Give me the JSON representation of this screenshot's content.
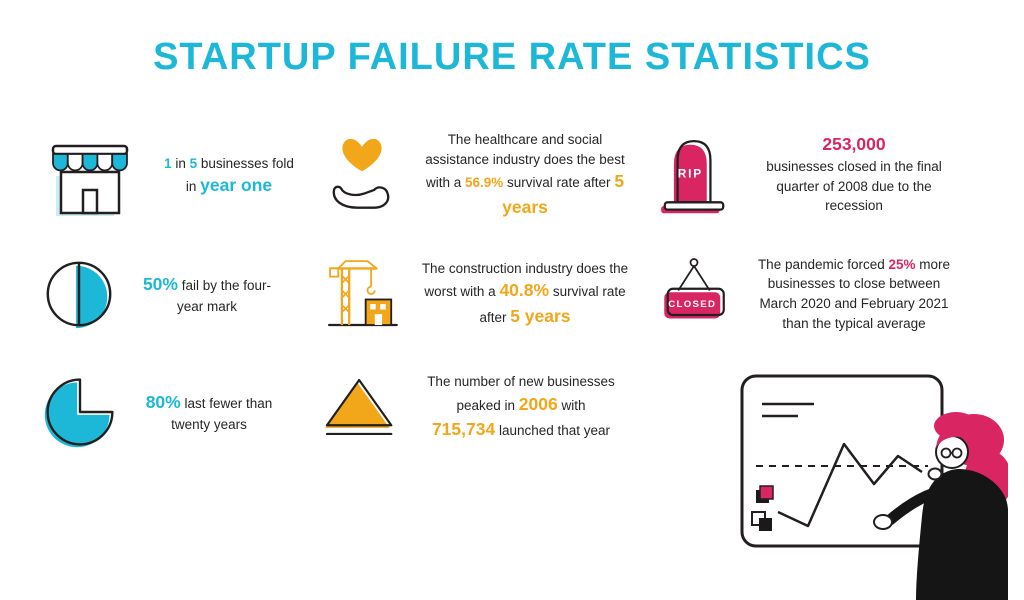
{
  "title": "STARTUP FAILURE RATE STATISTICS",
  "palette": {
    "cyan": "#1db8d8",
    "orange": "#f2a71b",
    "pink": "#d92662",
    "ink": "#231f20"
  },
  "stats": [
    {
      "id": "fold-year-one",
      "icon": "storefront-icon",
      "accent": "cyan",
      "segments": [
        {
          "t": "1",
          "c": "hl"
        },
        {
          "t": " in "
        },
        {
          "t": "5",
          "c": "hl"
        },
        {
          "t": " businesses fold"
        },
        {
          "br": true
        },
        {
          "t": "in "
        },
        {
          "t": "year one",
          "c": "hlbig"
        }
      ]
    },
    {
      "id": "healthcare-survival",
      "icon": "heart-in-hand-icon",
      "accent": "orange",
      "segments": [
        {
          "t": "The healthcare and social assistance industry does the best with a "
        },
        {
          "t": "56.9%",
          "c": "hl"
        },
        {
          "t": " survival rate after "
        },
        {
          "t": "5 years",
          "c": "hlbig"
        }
      ]
    },
    {
      "id": "recession-closures",
      "icon": "rip-tombstone-icon",
      "icon_label": "RIP",
      "accent": "pink",
      "segments": [
        {
          "t": "253,000",
          "c": "hlbig"
        },
        {
          "br": true
        },
        {
          "t": "businesses closed in the final quarter of 2008 due to the recession"
        }
      ]
    },
    {
      "id": "four-year-mark",
      "icon": "half-pie-icon",
      "accent": "cyan",
      "segments": [
        {
          "t": "50%",
          "c": "hlbig"
        },
        {
          "t": " fail by the four-year mark"
        }
      ]
    },
    {
      "id": "construction-survival",
      "icon": "crane-icon",
      "accent": "orange",
      "segments": [
        {
          "t": "The construction industry does the worst with a "
        },
        {
          "t": "40.8%",
          "c": "hlbig"
        },
        {
          "t": " survival rate after "
        },
        {
          "t": "5 years",
          "c": "hlbig"
        }
      ]
    },
    {
      "id": "pandemic-closures",
      "icon": "closed-sign-icon",
      "icon_label": "CLOSED",
      "accent": "pink",
      "segments": [
        {
          "t": "The pandemic forced "
        },
        {
          "t": "25%",
          "c": "hl"
        },
        {
          "t": " more businesses to close between March 2020 and February 2021 than the typical average"
        }
      ]
    },
    {
      "id": "twenty-years",
      "icon": "pie-80-icon",
      "accent": "cyan",
      "segments": [
        {
          "t": "80%",
          "c": "hlbig"
        },
        {
          "t": " last fewer than twenty years"
        }
      ]
    },
    {
      "id": "new-business-peak",
      "icon": "triangle-icon",
      "accent": "orange",
      "segments": [
        {
          "t": "The number of new businesses peaked in "
        },
        {
          "t": "2006",
          "c": "hlbig"
        },
        {
          "t": " with "
        },
        {
          "br": true
        },
        {
          "t": "715,734",
          "c": "hlbig"
        },
        {
          "t": " launched that year"
        }
      ]
    }
  ]
}
